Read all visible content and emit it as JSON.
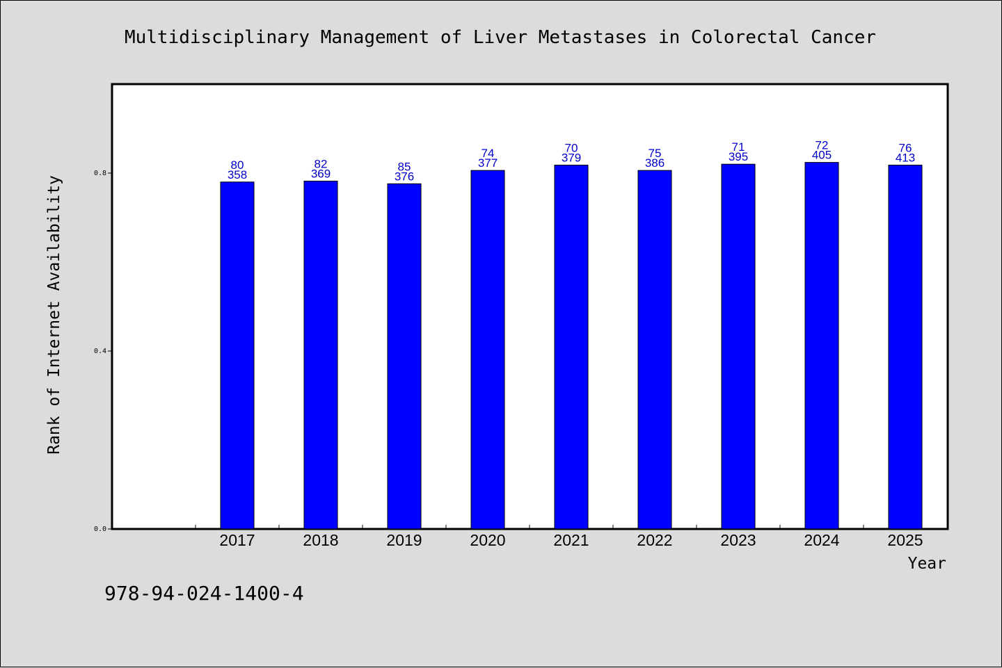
{
  "chart_data": {
    "type": "bar",
    "title": "Multidisciplinary Management of Liver Metastases in Colorectal Cancer",
    "xlabel": "Year",
    "ylabel": "Rank of Internet Availability",
    "categories": [
      "2017",
      "2018",
      "2019",
      "2020",
      "2021",
      "2022",
      "2023",
      "2024",
      "2025"
    ],
    "series": [
      {
        "values": [
          0.78,
          0.782,
          0.776,
          0.806,
          0.818,
          0.806,
          0.82,
          0.824,
          0.818
        ]
      }
    ],
    "data_labels_top": [
      "80",
      "82",
      "85",
      "74",
      "70",
      "75",
      "71",
      "72",
      "76"
    ],
    "data_labels_bottom": [
      "358",
      "369",
      "376",
      "377",
      "379",
      "386",
      "395",
      "405",
      "413"
    ],
    "ylim": [
      0.0,
      1.0
    ],
    "yticks": [
      0.0,
      0.4,
      0.8
    ],
    "ytick_labels": [
      "0.0",
      "0.4",
      "0.8"
    ],
    "grid": false,
    "bar_color": "#0000ff",
    "label_color": "#0000cc"
  },
  "footer": {
    "isbn": "978-94-024-1400-4"
  }
}
